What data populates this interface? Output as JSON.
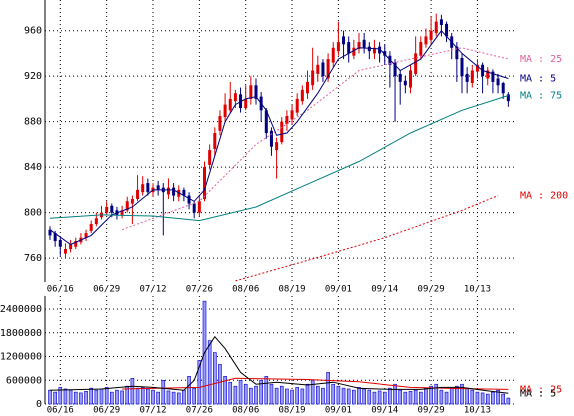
{
  "chart_data": [
    {
      "type": "candlestick",
      "categories": [
        null,
        null,
        "06/16",
        null,
        null,
        null,
        null,
        null,
        null,
        null,
        null,
        "06/29",
        null,
        null,
        null,
        null,
        null,
        null,
        null,
        null,
        "07/12",
        null,
        null,
        null,
        null,
        null,
        null,
        null,
        null,
        "07/26",
        null,
        null,
        null,
        null,
        null,
        null,
        null,
        null,
        "08/06",
        null,
        null,
        null,
        null,
        null,
        null,
        null,
        null,
        "08/19",
        null,
        null,
        null,
        null,
        null,
        null,
        null,
        null,
        "09/01",
        null,
        null,
        null,
        null,
        null,
        null,
        null,
        null,
        "09/14",
        null,
        null,
        null,
        null,
        null,
        null,
        null,
        null,
        "09/29",
        null,
        null,
        null,
        null,
        null,
        null,
        null,
        null,
        "10/13",
        null,
        null,
        null,
        null,
        null,
        null
      ],
      "open": [
        785,
        782,
        776,
        764,
        768,
        770,
        774,
        778,
        784,
        790,
        796,
        800,
        806,
        802,
        798,
        802,
        808,
        812,
        818,
        826,
        818,
        824,
        822,
        816,
        822,
        814,
        820,
        815,
        808,
        800,
        812,
        842,
        856,
        872,
        884,
        890,
        898,
        904,
        892,
        900,
        912,
        902,
        890,
        872,
        855,
        862,
        878,
        882,
        888,
        898,
        905,
        912,
        922,
        932,
        918,
        932,
        942,
        955,
        950,
        938,
        944,
        952,
        946,
        940,
        946,
        942,
        938,
        932,
        922,
        916,
        910,
        922,
        938,
        948,
        952,
        958,
        970,
        966,
        955,
        946,
        936,
        922,
        914,
        924,
        930,
        918,
        924,
        918,
        914,
        904
      ],
      "high": [
        788,
        784,
        778,
        773,
        776,
        778,
        782,
        785,
        793,
        800,
        806,
        810,
        808,
        805,
        806,
        814,
        815,
        833,
        832,
        830,
        826,
        828,
        826,
        830,
        826,
        824,
        822,
        818,
        810,
        815,
        845,
        860,
        875,
        890,
        905,
        915,
        908,
        910,
        912,
        920,
        918,
        906,
        892,
        875,
        866,
        884,
        890,
        895,
        905,
        912,
        925,
        945,
        938,
        935,
        940,
        950,
        968,
        960,
        955,
        952,
        958,
        958,
        950,
        952,
        950,
        948,
        942,
        935,
        925,
        920,
        930,
        955,
        955,
        962,
        972,
        975,
        974,
        968,
        958,
        950,
        940,
        928,
        930,
        935,
        932,
        928,
        926,
        922,
        915,
        906
      ],
      "low": [
        776,
        770,
        762,
        760,
        765,
        768,
        772,
        775,
        782,
        788,
        794,
        798,
        796,
        794,
        795,
        800,
        790,
        810,
        815,
        815,
        814,
        815,
        780,
        812,
        810,
        810,
        810,
        803,
        795,
        797,
        810,
        838,
        850,
        868,
        880,
        888,
        892,
        888,
        890,
        895,
        895,
        880,
        865,
        850,
        830,
        860,
        872,
        878,
        885,
        895,
        900,
        908,
        915,
        915,
        915,
        928,
        938,
        935,
        932,
        935,
        940,
        940,
        935,
        935,
        932,
        930,
        910,
        880,
        895,
        905,
        905,
        920,
        935,
        945,
        948,
        955,
        955,
        950,
        935,
        915,
        905,
        905,
        910,
        918,
        905,
        912,
        905,
        905,
        900,
        893
      ],
      "close": [
        780,
        775,
        770,
        768,
        772,
        775,
        778,
        782,
        790,
        795,
        800,
        805,
        800,
        798,
        802,
        810,
        812,
        820,
        825,
        818,
        822,
        820,
        818,
        822,
        815,
        820,
        815,
        808,
        800,
        810,
        840,
        855,
        870,
        885,
        895,
        900,
        905,
        892,
        900,
        912,
        900,
        890,
        870,
        858,
        862,
        880,
        885,
        890,
        900,
        908,
        915,
        925,
        930,
        920,
        935,
        945,
        950,
        948,
        940,
        945,
        950,
        945,
        942,
        945,
        940,
        938,
        930,
        920,
        915,
        912,
        925,
        940,
        950,
        955,
        960,
        968,
        965,
        955,
        945,
        935,
        920,
        915,
        925,
        930,
        920,
        925,
        915,
        912,
        905,
        898
      ],
      "up_color": "#e00000",
      "down_color": "#000080",
      "series": [
        {
          "name": "MA : 25",
          "color": "#e060a0",
          "dash": true,
          "x": [
            14,
            29,
            40,
            50,
            60,
            70,
            80,
            89
          ],
          "values": [
            785,
            810,
            860,
            890,
            925,
            935,
            945,
            935
          ]
        },
        {
          "name": "MA : 5",
          "color": "#000080",
          "dash": false,
          "x": [
            0,
            4,
            8,
            12,
            16,
            20,
            24,
            28,
            30,
            32,
            34,
            36,
            38,
            40,
            42,
            44,
            46,
            48,
            52,
            56,
            60,
            64,
            68,
            72,
            76,
            80,
            84,
            89
          ],
          "values": [
            785,
            772,
            780,
            798,
            805,
            820,
            820,
            810,
            820,
            850,
            880,
            895,
            900,
            902,
            890,
            868,
            870,
            880,
            905,
            935,
            945,
            944,
            925,
            935,
            960,
            940,
            925,
            918
          ]
        },
        {
          "name": "MA : 75",
          "color": "#008080",
          "dash": false,
          "x": [
            0,
            10,
            20,
            29,
            40,
            50,
            60,
            70,
            80,
            89
          ],
          "values": [
            795,
            798,
            797,
            793,
            805,
            825,
            845,
            870,
            890,
            903
          ]
        },
        {
          "name": "MA : 200",
          "color": "#e00000",
          "dash": true,
          "x": [
            36,
            50,
            65,
            80,
            87
          ],
          "values": [
            740,
            758,
            778,
            802,
            815
          ]
        }
      ],
      "ylim": [
        739,
        987
      ],
      "yticks": [
        760,
        800,
        840,
        880,
        920,
        960
      ],
      "grid": true
    },
    {
      "type": "bar",
      "categories": [
        null,
        null,
        "06/16",
        null,
        null,
        null,
        null,
        null,
        null,
        null,
        null,
        "06/29",
        null,
        null,
        null,
        null,
        null,
        null,
        null,
        null,
        "07/12",
        null,
        null,
        null,
        null,
        null,
        null,
        null,
        null,
        "07/26",
        null,
        null,
        null,
        null,
        null,
        null,
        null,
        null,
        "08/06",
        null,
        null,
        null,
        null,
        null,
        null,
        null,
        null,
        "08/19",
        null,
        null,
        null,
        null,
        null,
        null,
        null,
        null,
        "09/01",
        null,
        null,
        null,
        null,
        null,
        null,
        null,
        null,
        "09/14",
        null,
        null,
        null,
        null,
        null,
        null,
        null,
        null,
        "09/29",
        null,
        null,
        null,
        null,
        null,
        null,
        null,
        null,
        "10/13",
        null,
        null,
        null,
        null,
        null,
        null
      ],
      "values": [
        350000,
        300000,
        420000,
        380000,
        350000,
        300000,
        280000,
        320000,
        400000,
        350000,
        380000,
        420000,
        300000,
        350000,
        330000,
        450000,
        650000,
        400000,
        420000,
        380000,
        350000,
        300000,
        600000,
        330000,
        300000,
        280000,
        350000,
        700000,
        400000,
        1100000,
        2600000,
        1600000,
        1300000,
        1000000,
        700000,
        550000,
        450000,
        600000,
        500000,
        400000,
        450000,
        600000,
        700000,
        500000,
        400000,
        450000,
        380000,
        350000,
        420000,
        380000,
        500000,
        600000,
        450000,
        400000,
        800000,
        500000,
        450000,
        400000,
        380000,
        350000,
        420000,
        380000,
        350000,
        300000,
        330000,
        300000,
        400000,
        500000,
        350000,
        300000,
        320000,
        350000,
        300000,
        400000,
        450000,
        500000,
        350000,
        300000,
        400000,
        450000,
        500000,
        400000,
        350000,
        300000,
        280000,
        250000,
        300000,
        350000,
        250000,
        150000
      ],
      "color": "#9999ff",
      "edge_color": "#0000cc",
      "series": [
        {
          "name": "MA : 25",
          "color": "#e00000",
          "dash": false,
          "x": [
            14,
            29,
            36,
            50,
            60,
            70,
            80,
            89
          ],
          "values": [
            380000,
            420000,
            650000,
            620000,
            560000,
            420000,
            390000,
            370000
          ]
        },
        {
          "name": "MA : 5",
          "color": "#000000",
          "dash": false,
          "x": [
            0,
            10,
            16,
            20,
            26,
            28,
            30,
            32,
            34,
            37,
            40,
            44,
            50,
            55,
            60,
            66,
            72,
            76,
            80,
            85,
            89
          ],
          "values": [
            350000,
            380000,
            450000,
            420000,
            350000,
            600000,
            1300000,
            1700000,
            1400000,
            800000,
            500000,
            550000,
            480000,
            550000,
            400000,
            370000,
            370000,
            420000,
            420000,
            330000,
            270000
          ]
        }
      ],
      "ylim": [
        0,
        2730000
      ],
      "yticks": [
        0,
        600000,
        1200000,
        1800000,
        2400000
      ],
      "grid": true
    }
  ]
}
